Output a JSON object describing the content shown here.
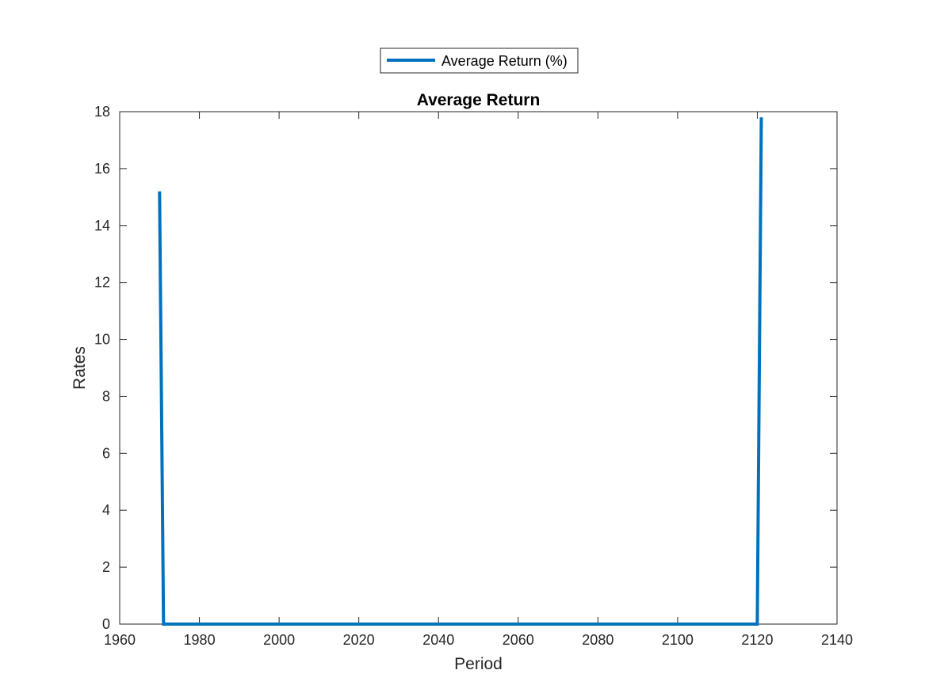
{
  "chart_data": {
    "type": "line",
    "title": "Average Return",
    "xlabel": "Period",
    "ylabel": "Rates",
    "xlim": [
      1960,
      2140
    ],
    "ylim": [
      0,
      18
    ],
    "xticks": [
      "1960",
      "1980",
      "2000",
      "2020",
      "2040",
      "2060",
      "2080",
      "2100",
      "2120",
      "2140"
    ],
    "yticks": [
      "0",
      "2",
      "4",
      "6",
      "8",
      "10",
      "12",
      "14",
      "16",
      "18"
    ],
    "grid": false,
    "legend": "top-center, outside plot area",
    "series": [
      {
        "name": "Average Return (%)",
        "color": "#0072BD",
        "points": [
          {
            "x": 1970,
            "y": 15.2
          },
          {
            "x": 1971,
            "y": 0
          },
          {
            "x": 2120,
            "y": 0
          },
          {
            "x": 2121,
            "y": 17.8
          }
        ]
      }
    ]
  }
}
